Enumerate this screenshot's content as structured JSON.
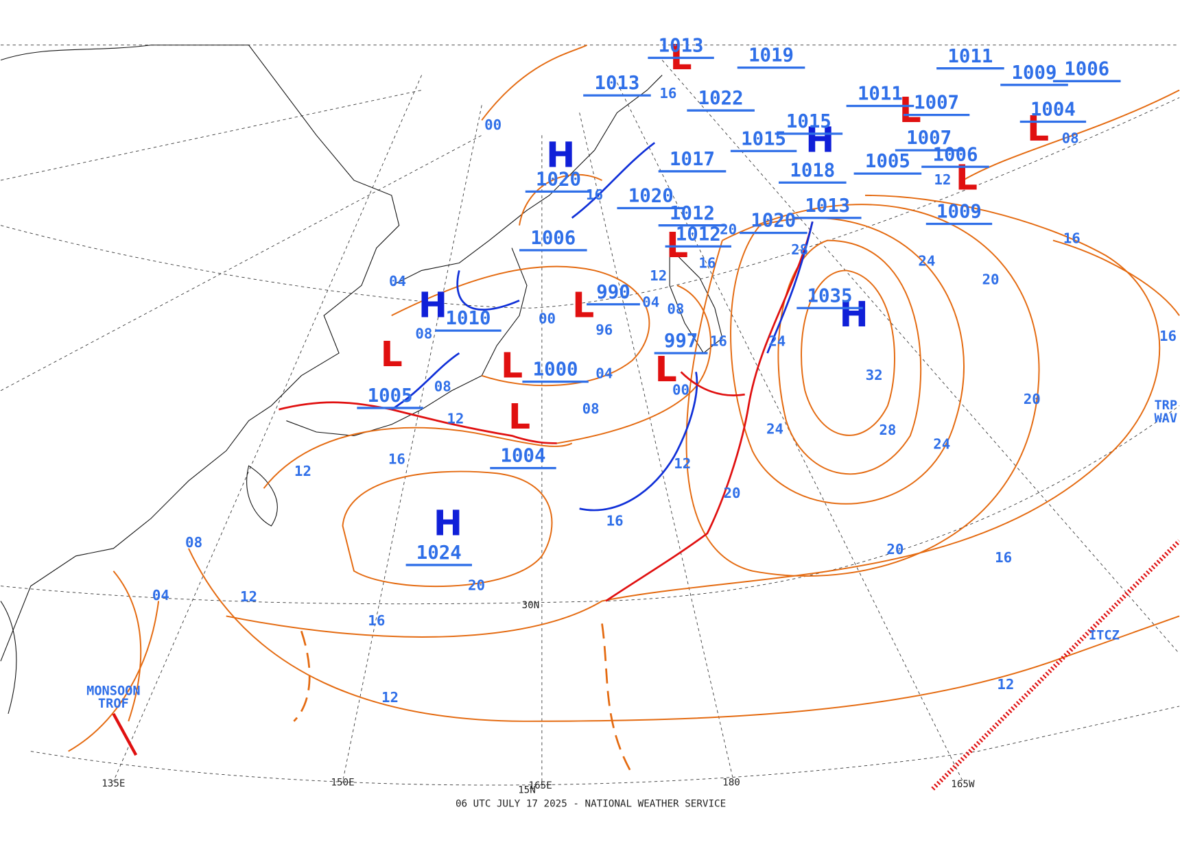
{
  "footer": "06 UTC JULY 17 2025 - NATIONAL WEATHER SERVICE",
  "pressure_centers": [
    {
      "symbol": "H",
      "pressure": "1020"
    },
    {
      "symbol": "H",
      "pressure": "1024"
    },
    {
      "symbol": "H",
      "pressure": "1035"
    },
    {
      "symbol": "H",
      "pressure": "1010"
    },
    {
      "symbol": "L",
      "pressure": "1005"
    },
    {
      "symbol": "L",
      "pressure": "1000"
    },
    {
      "symbol": "L",
      "pressure": "1004"
    },
    {
      "symbol": "L",
      "pressure": "990"
    },
    {
      "symbol": "L",
      "pressure": "997"
    },
    {
      "symbol": "L",
      "pressure": "1009"
    },
    {
      "symbol": "L",
      "pressure": "1013"
    },
    {
      "symbol": "L",
      "pressure": "1012"
    },
    {
      "symbol": "L",
      "pressure": "1007"
    },
    {
      "symbol": "L",
      "pressure": "1004"
    },
    {
      "symbol": "H",
      "pressure": "1015"
    }
  ],
  "pressure_labels": [
    "1013",
    "1006",
    "1022",
    "1019",
    "1017",
    "1020",
    "1012",
    "1020",
    "1013",
    "1018",
    "1015",
    "1005",
    "1011",
    "1011",
    "1007",
    "1006",
    "1006",
    "1009"
  ],
  "isobar_labels": [
    "00",
    "16",
    "16",
    "04",
    "08",
    "00",
    "96",
    "04",
    "08",
    "12",
    "16",
    "16",
    "00",
    "04",
    "08",
    "08",
    "12",
    "16",
    "12",
    "08",
    "04",
    "12",
    "16",
    "12",
    "20",
    "16",
    "12",
    "20",
    "24",
    "24",
    "28",
    "20",
    "32",
    "28",
    "24",
    "24",
    "20",
    "16",
    "20",
    "16",
    "20",
    "16",
    "12",
    "08",
    "12"
  ],
  "grid_labels": [
    "135E",
    "150E",
    "165E",
    "180",
    "165W",
    "15N",
    "30N"
  ],
  "features": [
    {
      "lines": [
        "MONSOON",
        "TROF"
      ]
    },
    {
      "lines": [
        "ITCZ"
      ]
    },
    {
      "lines": [
        "TRP",
        "WAV"
      ]
    }
  ]
}
